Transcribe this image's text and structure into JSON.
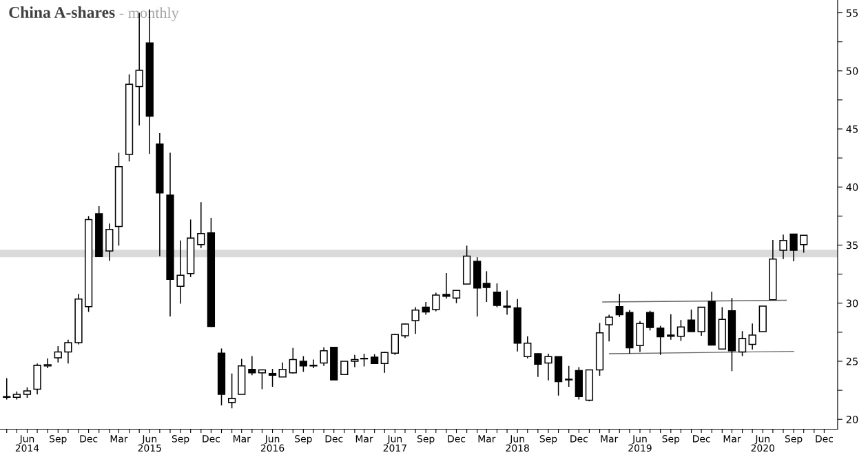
{
  "chart_data": {
    "type": "candlestick",
    "title": "China A-shares",
    "subtitle": "- monthly",
    "x": [
      "2014-04",
      "2014-05",
      "2014-06",
      "2014-07",
      "2014-08",
      "2014-09",
      "2014-10",
      "2014-11",
      "2014-12",
      "2015-01",
      "2015-02",
      "2015-03",
      "2015-04",
      "2015-05",
      "2015-06",
      "2015-07",
      "2015-08",
      "2015-09",
      "2015-10",
      "2015-11",
      "2015-12",
      "2016-01",
      "2016-02",
      "2016-03",
      "2016-04",
      "2016-05",
      "2016-06",
      "2016-07",
      "2016-08",
      "2016-09",
      "2016-10",
      "2016-11",
      "2016-12",
      "2017-01",
      "2017-02",
      "2017-03",
      "2017-04",
      "2017-05",
      "2017-06",
      "2017-07",
      "2017-08",
      "2017-09",
      "2017-10",
      "2017-11",
      "2017-12",
      "2018-01",
      "2018-02",
      "2018-03",
      "2018-04",
      "2018-05",
      "2018-06",
      "2018-07",
      "2018-08",
      "2018-09",
      "2018-10",
      "2018-11",
      "2018-12",
      "2019-01",
      "2019-02",
      "2019-03",
      "2019-04",
      "2019-05",
      "2019-06",
      "2019-07",
      "2019-08",
      "2019-09",
      "2019-10",
      "2019-11",
      "2019-12",
      "2020-01",
      "2020-02",
      "2020-03",
      "2020-04",
      "2020-05",
      "2020-06",
      "2020-07",
      "2020-08",
      "2020-09",
      "2020-10"
    ],
    "ohlc": [
      [
        21.9,
        23.55,
        21.7,
        21.95
      ],
      [
        21.9,
        22.4,
        21.7,
        22.15
      ],
      [
        22.15,
        22.75,
        21.85,
        22.45
      ],
      [
        22.6,
        24.8,
        22.15,
        24.65
      ],
      [
        24.6,
        25.25,
        24.4,
        24.7
      ],
      [
        25.3,
        26.3,
        24.9,
        25.8
      ],
      [
        25.8,
        26.85,
        24.8,
        26.6
      ],
      [
        26.6,
        30.8,
        26.45,
        30.35
      ],
      [
        29.7,
        37.5,
        29.25,
        37.2
      ],
      [
        37.7,
        38.35,
        34.0,
        34.0
      ],
      [
        34.5,
        36.85,
        33.65,
        36.35
      ],
      [
        36.6,
        42.95,
        34.95,
        41.75
      ],
      [
        42.8,
        49.7,
        42.2,
        48.85
      ],
      [
        48.65,
        55.0,
        45.3,
        50.05
      ],
      [
        52.4,
        55.3,
        42.85,
        46.1
      ],
      [
        43.7,
        44.65,
        34.05,
        39.5
      ],
      [
        39.3,
        42.95,
        28.85,
        32.05
      ],
      [
        31.45,
        35.4,
        29.95,
        32.4
      ],
      [
        32.55,
        37.2,
        32.25,
        35.6
      ],
      [
        35.05,
        38.7,
        34.75,
        36.0
      ],
      [
        36.05,
        37.35,
        27.95,
        28.0
      ],
      [
        25.7,
        26.1,
        21.2,
        22.15
      ],
      [
        21.45,
        23.95,
        20.95,
        21.8
      ],
      [
        22.15,
        25.2,
        22.15,
        24.6
      ],
      [
        24.3,
        25.45,
        23.8,
        24.0
      ],
      [
        24.0,
        24.3,
        22.6,
        24.25
      ],
      [
        23.95,
        24.35,
        22.8,
        23.8
      ],
      [
        23.65,
        24.9,
        23.65,
        24.3
      ],
      [
        24.0,
        26.15,
        23.95,
        25.15
      ],
      [
        25.0,
        25.45,
        24.1,
        24.6
      ],
      [
        24.6,
        25.15,
        24.4,
        24.65
      ],
      [
        24.85,
        26.2,
        24.6,
        25.9
      ],
      [
        26.2,
        26.2,
        23.4,
        23.4
      ],
      [
        23.85,
        25.0,
        23.85,
        25.0
      ],
      [
        25.0,
        25.55,
        24.5,
        25.15
      ],
      [
        25.2,
        25.65,
        24.55,
        25.25
      ],
      [
        25.35,
        25.6,
        24.8,
        24.8
      ],
      [
        24.8,
        25.8,
        24.0,
        25.75
      ],
      [
        25.7,
        27.35,
        25.55,
        27.3
      ],
      [
        27.2,
        28.25,
        27.0,
        28.2
      ],
      [
        28.5,
        29.65,
        27.35,
        29.4
      ],
      [
        29.65,
        30.1,
        29.0,
        29.25
      ],
      [
        29.45,
        30.9,
        29.3,
        30.7
      ],
      [
        30.75,
        32.6,
        30.4,
        30.6
      ],
      [
        30.45,
        31.1,
        30.0,
        31.1
      ],
      [
        31.65,
        34.95,
        31.65,
        34.05
      ],
      [
        33.6,
        33.95,
        28.85,
        31.3
      ],
      [
        31.7,
        32.75,
        30.1,
        31.35
      ],
      [
        30.95,
        31.7,
        29.65,
        29.8
      ],
      [
        29.75,
        31.1,
        29.0,
        29.65
      ],
      [
        29.6,
        30.35,
        25.85,
        26.55
      ],
      [
        25.4,
        27.15,
        25.25,
        26.55
      ],
      [
        25.65,
        25.7,
        23.65,
        24.75
      ],
      [
        24.85,
        25.65,
        23.35,
        25.4
      ],
      [
        25.4,
        25.4,
        22.05,
        23.25
      ],
      [
        23.4,
        24.6,
        22.8,
        23.45
      ],
      [
        24.2,
        24.5,
        21.7,
        21.95
      ],
      [
        21.65,
        24.25,
        21.55,
        24.25
      ],
      [
        24.25,
        28.3,
        23.75,
        27.45
      ],
      [
        28.15,
        29.0,
        26.7,
        28.8
      ],
      [
        29.7,
        30.8,
        28.8,
        29.0
      ],
      [
        29.2,
        29.4,
        25.65,
        26.15
      ],
      [
        26.35,
        28.45,
        25.8,
        28.25
      ],
      [
        29.2,
        29.35,
        27.65,
        27.9
      ],
      [
        27.85,
        28.05,
        25.55,
        27.1
      ],
      [
        27.25,
        29.05,
        26.85,
        27.15
      ],
      [
        27.15,
        28.55,
        26.75,
        27.95
      ],
      [
        28.55,
        29.45,
        27.55,
        27.55
      ],
      [
        27.55,
        29.65,
        27.2,
        29.65
      ],
      [
        30.15,
        31.0,
        26.4,
        26.4
      ],
      [
        26.05,
        29.65,
        26.05,
        28.6
      ],
      [
        29.35,
        30.45,
        24.15,
        25.9
      ],
      [
        25.8,
        27.6,
        25.45,
        26.95
      ],
      [
        26.45,
        28.25,
        26.0,
        27.25
      ],
      [
        27.55,
        29.75,
        27.55,
        29.75
      ],
      [
        30.3,
        35.45,
        30.3,
        33.8
      ],
      [
        34.55,
        35.9,
        33.8,
        35.4
      ],
      [
        35.95,
        35.95,
        33.6,
        34.55
      ],
      [
        35.05,
        35.85,
        34.35,
        35.85
      ]
    ],
    "series": [
      {
        "type": "line",
        "x": [
          "2019-02-10",
          "2020-08-10"
        ],
        "values": [
          30.1,
          30.25
        ],
        "color": "#666666"
      },
      {
        "type": "line",
        "x": [
          "2019-03-02",
          "2020-09-01"
        ],
        "values": [
          25.65,
          25.85
        ],
        "color": "#666666"
      }
    ],
    "bands": [
      {
        "axis": "y",
        "from": 33.95,
        "to": 34.6,
        "color": "#dadada"
      }
    ],
    "xlim": [
      "2014-03-12",
      "2021-01-10"
    ],
    "xticks": [
      {
        "value": "2014-04",
        "label": null
      },
      {
        "value": "2014-05",
        "label": null
      },
      {
        "value": "2014-06",
        "label": "Jun\n2014"
      },
      {
        "value": "2014-07",
        "label": null
      },
      {
        "value": "2014-08",
        "label": null
      },
      {
        "value": "2014-09",
        "label": "Sep"
      },
      {
        "value": "2014-10",
        "label": null
      },
      {
        "value": "2014-11",
        "label": null
      },
      {
        "value": "2014-12",
        "label": "Dec"
      },
      {
        "value": "2015-01",
        "label": null
      },
      {
        "value": "2015-02",
        "label": null
      },
      {
        "value": "2015-03",
        "label": "Mar"
      },
      {
        "value": "2015-04",
        "label": null
      },
      {
        "value": "2015-05",
        "label": null
      },
      {
        "value": "2015-06",
        "label": "Jun\n2015"
      },
      {
        "value": "2015-07",
        "label": null
      },
      {
        "value": "2015-08",
        "label": null
      },
      {
        "value": "2015-09",
        "label": "Sep"
      },
      {
        "value": "2015-10",
        "label": null
      },
      {
        "value": "2015-11",
        "label": null
      },
      {
        "value": "2015-12",
        "label": "Dec"
      },
      {
        "value": "2016-01",
        "label": null
      },
      {
        "value": "2016-02",
        "label": null
      },
      {
        "value": "2016-03",
        "label": "Mar"
      },
      {
        "value": "2016-04",
        "label": null
      },
      {
        "value": "2016-05",
        "label": null
      },
      {
        "value": "2016-06",
        "label": "Jun\n2016"
      },
      {
        "value": "2016-07",
        "label": null
      },
      {
        "value": "2016-08",
        "label": null
      },
      {
        "value": "2016-09",
        "label": "Sep"
      },
      {
        "value": "2016-10",
        "label": null
      },
      {
        "value": "2016-11",
        "label": null
      },
      {
        "value": "2016-12",
        "label": "Dec"
      },
      {
        "value": "2017-01",
        "label": null
      },
      {
        "value": "2017-02",
        "label": null
      },
      {
        "value": "2017-03",
        "label": "Mar"
      },
      {
        "value": "2017-04",
        "label": null
      },
      {
        "value": "2017-05",
        "label": null
      },
      {
        "value": "2017-06",
        "label": "Jun\n2017"
      },
      {
        "value": "2017-07",
        "label": null
      },
      {
        "value": "2017-08",
        "label": null
      },
      {
        "value": "2017-09",
        "label": "Sep"
      },
      {
        "value": "2017-10",
        "label": null
      },
      {
        "value": "2017-11",
        "label": null
      },
      {
        "value": "2017-12",
        "label": "Dec"
      },
      {
        "value": "2018-01",
        "label": null
      },
      {
        "value": "2018-02",
        "label": null
      },
      {
        "value": "2018-03",
        "label": "Mar"
      },
      {
        "value": "2018-04",
        "label": null
      },
      {
        "value": "2018-05",
        "label": null
      },
      {
        "value": "2018-06",
        "label": "Jun\n2018"
      },
      {
        "value": "2018-07",
        "label": null
      },
      {
        "value": "2018-08",
        "label": null
      },
      {
        "value": "2018-09",
        "label": "Sep"
      },
      {
        "value": "2018-10",
        "label": null
      },
      {
        "value": "2018-11",
        "label": null
      },
      {
        "value": "2018-12",
        "label": "Dec"
      },
      {
        "value": "2019-01",
        "label": null
      },
      {
        "value": "2019-02",
        "label": null
      },
      {
        "value": "2019-03",
        "label": "Mar"
      },
      {
        "value": "2019-04",
        "label": null
      },
      {
        "value": "2019-05",
        "label": null
      },
      {
        "value": "2019-06",
        "label": "Jun\n2019"
      },
      {
        "value": "2019-07",
        "label": null
      },
      {
        "value": "2019-08",
        "label": null
      },
      {
        "value": "2019-09",
        "label": "Sep"
      },
      {
        "value": "2019-10",
        "label": null
      },
      {
        "value": "2019-11",
        "label": null
      },
      {
        "value": "2019-12",
        "label": "Dec"
      },
      {
        "value": "2020-01",
        "label": null
      },
      {
        "value": "2020-02",
        "label": null
      },
      {
        "value": "2020-03",
        "label": "Mar"
      },
      {
        "value": "2020-04",
        "label": null
      },
      {
        "value": "2020-05",
        "label": null
      },
      {
        "value": "2020-06",
        "label": "Jun\n2020"
      },
      {
        "value": "2020-07",
        "label": null
      },
      {
        "value": "2020-08",
        "label": null
      },
      {
        "value": "2020-09",
        "label": "Sep"
      },
      {
        "value": "2020-10",
        "label": null
      },
      {
        "value": "2020-11",
        "label": null
      },
      {
        "value": "2020-12",
        "label": "Dec"
      }
    ],
    "ylim": [
      19.15,
      56.1
    ],
    "yticks": [
      20,
      {
        "value": 22.5,
        "label": null
      },
      25,
      {
        "value": 27.5,
        "label": null
      },
      30,
      {
        "value": 32.5,
        "label": null
      },
      35,
      {
        "value": 37.5,
        "label": null
      },
      40,
      {
        "value": 42.5,
        "label": null
      },
      45,
      {
        "value": 47.5,
        "label": null
      },
      50,
      {
        "value": 52.5,
        "label": null
      },
      55
    ],
    "grid": false,
    "legend": false
  }
}
